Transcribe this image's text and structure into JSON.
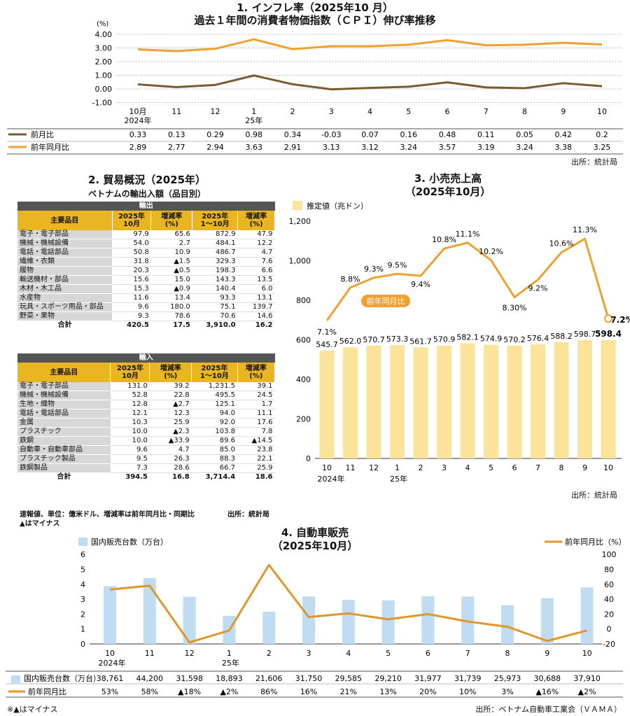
{
  "cpi": {
    "title": "1. インフレ率（2025年10 月）",
    "subtitle": "過去１年間の消費者物価指数（ＣＰＩ）伸び率推移",
    "unit": "(%)",
    "source": "出所：統計局"
  },
  "trade": {
    "title": "2. 貿易概況（2025年）",
    "subtitle": "ベトナムの輸出入額（品目別）",
    "export_label": "輸出",
    "import_label": "輸入",
    "headers": [
      "主要品目",
      "2025年\n10月",
      "増減率\n(%)",
      "2025年\n1～10月",
      "増減率\n(%)"
    ],
    "exports": [
      [
        "電子・電子部品",
        "97.9",
        "65.6",
        "872.9",
        "47.9"
      ],
      [
        "機械・機械設備",
        "54.0",
        "2.7",
        "484.1",
        "12.2"
      ],
      [
        "電話・電話部品",
        "50.8",
        "10.9",
        "486.7",
        "4.7"
      ],
      [
        "繊維・衣類",
        "31.8",
        "▲1.5",
        "329.3",
        "7.6"
      ],
      [
        "履物",
        "20.3",
        "▲0.5",
        "198.3",
        "6.6"
      ],
      [
        "輸送機材・部品",
        "15.6",
        "15.0",
        "143.3",
        "13.5"
      ],
      [
        "木材・木工品",
        "15.3",
        "▲0.9",
        "140.4",
        "6.0"
      ],
      [
        "水産物",
        "11.6",
        "13.4",
        "93.3",
        "13.1"
      ],
      [
        "玩具・スポーツ用品・部品",
        "9.6",
        "180.0",
        "75.1",
        "139.7"
      ],
      [
        "野菜・果物",
        "9.3",
        "78.6",
        "70.6",
        "14.6"
      ]
    ],
    "export_total": [
      "合計",
      "420.5",
      "17.5",
      "3,910.0",
      "16.2"
    ],
    "imports": [
      [
        "電子・電子部品",
        "131.0",
        "39.2",
        "1,231.5",
        "39.1"
      ],
      [
        "機械・機械設備",
        "52.8",
        "22.8",
        "495.5",
        "24.5"
      ],
      [
        "生地・織物",
        "12.8",
        "▲2.7",
        "125.1",
        "1.7"
      ],
      [
        "電話・電話部品",
        "12.1",
        "12.3",
        "94.0",
        "11.1"
      ],
      [
        "金属",
        "10.3",
        "25.9",
        "92.0",
        "17.6"
      ],
      [
        "プラスチック",
        "10.0",
        "▲2.3",
        "103.8",
        "7.8"
      ],
      [
        "鉄鋼",
        "10.0",
        "▲33.9",
        "89.6",
        "▲14.5"
      ],
      [
        "自動車・自動車部品",
        "9.6",
        "4.7",
        "85.0",
        "23.8"
      ],
      [
        "プラスチック製品",
        "9.5",
        "26.3",
        "88.3",
        "22.1"
      ],
      [
        "鉄鋼製品",
        "7.3",
        "28.6",
        "66.7",
        "25.9"
      ]
    ],
    "import_total": [
      "合計",
      "394.5",
      "16.8",
      "3,714.4",
      "18.6"
    ],
    "note1": "速報値、単位：億米ドル、増減率は前年同月比・同期比",
    "note2": "▲はマイナス",
    "source": "出所：統計局"
  },
  "retail": {
    "title": "3. 小売売上高",
    "subtitle": "（2025年10月）",
    "legend": "推定値（兆ドン）",
    "line_label": "前年同月比",
    "source": "出所：統計局"
  },
  "auto": {
    "title": "4. 自動車販売",
    "subtitle": "（2025年10月）",
    "legend_bar": "国内販売台数（万台）",
    "legend_line": "前年同月比（%）",
    "row1_label": "国内販売台数（万台）",
    "row2_label": "前年同月比",
    "note": "※▲はマイナス",
    "source": "出所：ベトナム自動車工業会（ＶＡＭＡ）"
  },
  "chart_data": [
    {
      "type": "line",
      "title": "過去１年間の消費者物価指数（ＣＰＩ）伸び率推移",
      "ylabel": "(%)",
      "ylim": [
        -1,
        4
      ],
      "yticks": [
        "4.00",
        "3.00",
        "2.00",
        "1.00",
        "0.00",
        "-1.00"
      ],
      "categories": [
        "10月",
        "11",
        "12",
        "1",
        "2",
        "3",
        "4",
        "5",
        "6",
        "7",
        "8",
        "9",
        "10"
      ],
      "sublabels": {
        "0": "2024年",
        "3": "25年"
      },
      "series": [
        {
          "name": "前月比",
          "color": "#7a5a2e",
          "values": [
            0.33,
            0.13,
            0.29,
            0.98,
            0.34,
            -0.03,
            0.07,
            0.16,
            0.48,
            0.11,
            0.05,
            0.42,
            0.2
          ],
          "labels": [
            "0.33",
            "0.13",
            "0.29",
            "0.98",
            "0.34",
            "-0.03",
            "0.07",
            "0.16",
            "0.48",
            "0.11",
            "0.05",
            "0.42",
            "0.2"
          ]
        },
        {
          "name": "前年同月比",
          "color": "#f0a030",
          "values": [
            2.89,
            2.77,
            2.94,
            3.63,
            2.91,
            3.13,
            3.12,
            3.24,
            3.57,
            3.19,
            3.24,
            3.38,
            3.25
          ],
          "labels": [
            "2.89",
            "2.77",
            "2.94",
            "3.63",
            "2.91",
            "3.13",
            "3.12",
            "3.24",
            "3.57",
            "3.19",
            "3.24",
            "3.38",
            "3.25"
          ]
        }
      ]
    },
    {
      "type": "bar",
      "title": "小売売上高",
      "ylim": [
        0,
        1200
      ],
      "yticks": [
        "1,200",
        "1,000",
        "800",
        "600",
        "400",
        "200",
        "0"
      ],
      "categories": [
        "10",
        "11",
        "12",
        "1",
        "2",
        "3",
        "4",
        "5",
        "6",
        "7",
        "8",
        "9",
        "10"
      ],
      "sublabels": {
        "0": "2024年",
        "3": "25年"
      },
      "series": [
        {
          "name": "推定値（兆ドン）",
          "color": "#fbe39a",
          "values": [
            545.7,
            562.0,
            570.7,
            573.3,
            561.7,
            570.9,
            582.1,
            574.9,
            570.2,
            576.4,
            588.2,
            598.7,
            598.4
          ],
          "labels": [
            "545.7",
            "562.0",
            "570.7",
            "573.3",
            "561.7",
            "570.9",
            "582.1",
            "574.9",
            "570.2",
            "576.4",
            "588.2",
            "598.7",
            "598.4"
          ]
        },
        {
          "name": "前年同月比",
          "color": "#f0a030",
          "values": [
            7.1,
            8.8,
            9.3,
            9.5,
            9.4,
            10.8,
            11.1,
            10.2,
            8.3,
            9.2,
            10.6,
            11.3,
            7.2
          ],
          "labels": [
            "7.1%",
            "8.8%",
            "9.3%",
            "9.5%",
            "9.4%",
            "10.8%",
            "11.1%",
            "10.2%",
            "8.30%",
            "9.2%",
            "10.6%",
            "11.3%",
            "7.2%"
          ]
        }
      ]
    },
    {
      "type": "bar",
      "title": "自動車販売",
      "ylim": [
        0,
        6
      ],
      "y2lim": [
        -20,
        100
      ],
      "yticks": [
        "6",
        "5",
        "4",
        "3",
        "2",
        "1",
        "0"
      ],
      "y2ticks": [
        "100",
        "80",
        "60",
        "40",
        "20",
        "0",
        "-20"
      ],
      "categories": [
        "10",
        "11",
        "12",
        "1",
        "2",
        "3",
        "4",
        "5",
        "6",
        "7",
        "8",
        "9",
        "10"
      ],
      "sublabels": {
        "0": "2024年",
        "3": "25年"
      },
      "series": [
        {
          "name": "国内販売台数（万台）",
          "color": "#bfdcf2",
          "values": [
            38761,
            44200,
            31598,
            18893,
            21606,
            31750,
            29585,
            29210,
            31977,
            31739,
            25973,
            30688,
            37910
          ],
          "labels": [
            "38,761",
            "44,200",
            "31,598",
            "18,893",
            "21,606",
            "31,750",
            "29,585",
            "29,210",
            "31,977",
            "31,739",
            "25,973",
            "30,688",
            "37,910"
          ]
        },
        {
          "name": "前年同月比（%）",
          "color": "#e0962a",
          "values": [
            53,
            58,
            -18,
            -2,
            86,
            16,
            21,
            13,
            20,
            10,
            3,
            -16,
            -2
          ],
          "labels": [
            "53%",
            "58%",
            "▲18%",
            "▲2%",
            "86%",
            "16%",
            "21%",
            "13%",
            "20%",
            "10%",
            "3%",
            "▲16%",
            "▲2%"
          ]
        }
      ]
    }
  ]
}
